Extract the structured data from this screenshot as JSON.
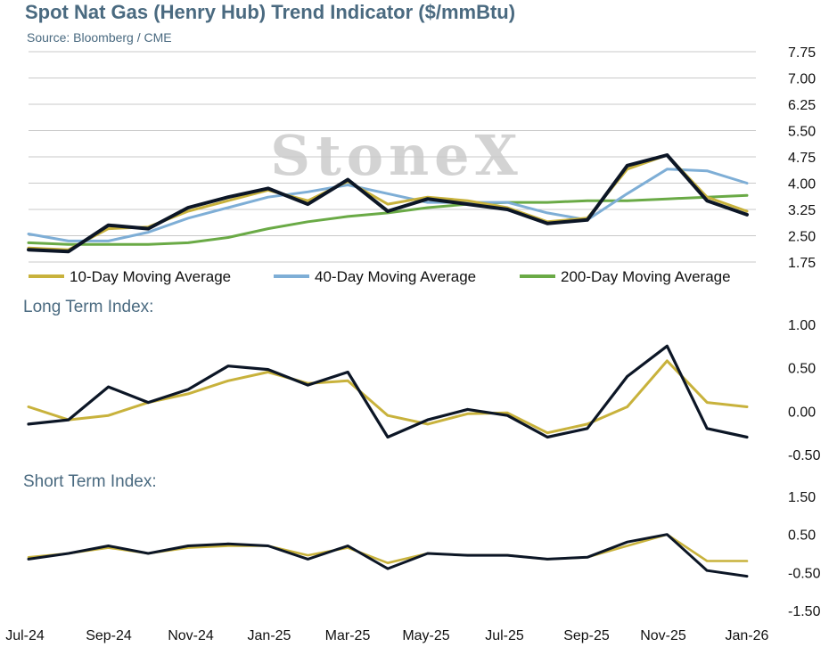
{
  "header": {
    "title": "Spot Nat Gas (Henry Hub) Trend Indicator ($/mmBtu)",
    "source": "Source: Bloomberg / CME",
    "watermark": "StoneX"
  },
  "colors": {
    "spot": "#0c1626",
    "ma10": "#c8b23c",
    "ma40": "#7eaed6",
    "ma200": "#6aaa46",
    "grid": "#c9c9c9",
    "label": "#4a6a80"
  },
  "x_axis_labels": [
    "Jul-24",
    "Sep-24",
    "Nov-24",
    "Jan-25",
    "Mar-25",
    "May-25",
    "Jul-25",
    "Sep-25",
    "Nov-25",
    "Jan-26"
  ],
  "chart_data": [
    {
      "type": "line",
      "title": "Spot Nat Gas (Henry Hub) Trend Indicator ($/mmBtu)",
      "y_ticks": [
        "7.75",
        "7.00",
        "6.25",
        "5.50",
        "4.75",
        "4.00",
        "3.25",
        "2.50",
        "1.75"
      ],
      "ylim": [
        1.75,
        7.75
      ],
      "legend_position": "bottom",
      "x": [
        "Jul-24",
        "Aug-24",
        "Sep-24",
        "Oct-24",
        "Nov-24",
        "Dec-24",
        "Jan-25",
        "Feb-25",
        "Mar-25",
        "Apr-25",
        "May-25",
        "Jun-25",
        "Jul-25",
        "Aug-25",
        "Sep-25",
        "Oct-25",
        "Nov-25",
        "Dec-25",
        "Jan-26"
      ],
      "series": [
        {
          "key": "spot",
          "values": [
            2.1,
            2.05,
            2.8,
            2.7,
            3.3,
            3.6,
            3.85,
            3.4,
            4.1,
            3.2,
            3.55,
            3.4,
            3.25,
            2.85,
            2.95,
            4.5,
            4.8,
            3.5,
            3.1
          ]
        },
        {
          "key": "ma10",
          "name": "10-Day Moving Average",
          "values": [
            2.15,
            2.1,
            2.7,
            2.75,
            3.2,
            3.5,
            3.8,
            3.5,
            4.05,
            3.4,
            3.6,
            3.5,
            3.3,
            2.9,
            3.0,
            4.4,
            4.8,
            3.6,
            3.2
          ]
        },
        {
          "key": "ma40",
          "name": "40-Day Moving Average",
          "values": [
            2.55,
            2.35,
            2.35,
            2.6,
            3.0,
            3.3,
            3.6,
            3.75,
            3.95,
            3.7,
            3.45,
            3.45,
            3.45,
            3.15,
            2.95,
            3.7,
            4.4,
            4.35,
            4.0
          ]
        },
        {
          "key": "ma200",
          "name": "200-Day Moving Average",
          "values": [
            2.3,
            2.25,
            2.25,
            2.25,
            2.3,
            2.45,
            2.7,
            2.9,
            3.05,
            3.15,
            3.3,
            3.4,
            3.45,
            3.45,
            3.5,
            3.5,
            3.55,
            3.6,
            3.65
          ]
        }
      ]
    },
    {
      "type": "line",
      "title": "Long Term Index:",
      "y_ticks": [
        "1.00",
        "0.50",
        "0.00",
        "-0.50"
      ],
      "ylim": [
        -0.5,
        1.0
      ],
      "series": [
        {
          "key": "spot",
          "values": [
            -0.15,
            -0.1,
            0.28,
            0.1,
            0.25,
            0.52,
            0.48,
            0.3,
            0.45,
            -0.3,
            -0.1,
            0.02,
            -0.05,
            -0.3,
            -0.2,
            0.4,
            0.75,
            -0.2,
            -0.3
          ]
        },
        {
          "key": "ma10",
          "values": [
            0.05,
            -0.1,
            -0.05,
            0.1,
            0.2,
            0.35,
            0.45,
            0.32,
            0.35,
            -0.05,
            -0.15,
            -0.03,
            -0.02,
            -0.25,
            -0.15,
            0.05,
            0.58,
            0.1,
            0.05
          ]
        }
      ]
    },
    {
      "type": "line",
      "title": "Short Term Index:",
      "y_ticks": [
        "1.50",
        "0.50",
        "-0.50",
        "-1.50"
      ],
      "ylim": [
        -1.5,
        1.5
      ],
      "series": [
        {
          "key": "spot",
          "values": [
            -0.15,
            0.0,
            0.2,
            0.0,
            0.2,
            0.25,
            0.2,
            -0.15,
            0.2,
            -0.4,
            0.0,
            -0.05,
            -0.05,
            -0.15,
            -0.1,
            0.3,
            0.5,
            -0.45,
            -0.6
          ]
        },
        {
          "key": "ma10",
          "values": [
            -0.1,
            0.0,
            0.15,
            0.0,
            0.15,
            0.2,
            0.2,
            -0.05,
            0.15,
            -0.25,
            0.0,
            -0.05,
            -0.05,
            -0.15,
            -0.1,
            0.2,
            0.5,
            -0.2,
            -0.2
          ]
        }
      ]
    }
  ]
}
